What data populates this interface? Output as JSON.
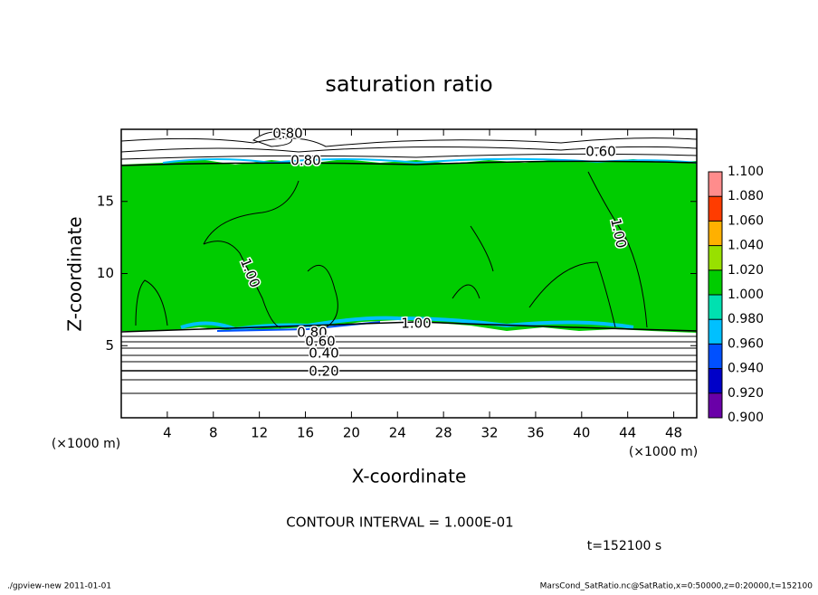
{
  "chart_data": {
    "type": "contour",
    "title": "saturation ratio",
    "xlabel": "X-coordinate",
    "ylabel": "Z-coordinate",
    "x_units": "(×1000 m)",
    "y_units": "(×1000 m)",
    "xlim": [
      0,
      50
    ],
    "xticks": [
      4,
      8,
      12,
      16,
      20,
      24,
      28,
      32,
      36,
      40,
      44,
      48
    ],
    "ylim": [
      0,
      20
    ],
    "yticks": [
      5,
      10,
      15
    ],
    "colorbar": {
      "levels": [
        {
          "value": 0.9,
          "label": "0.900"
        },
        {
          "value": 0.92,
          "label": "0.920"
        },
        {
          "value": 0.94,
          "label": "0.940"
        },
        {
          "value": 0.96,
          "label": "0.960"
        },
        {
          "value": 0.98,
          "label": "0.980"
        },
        {
          "value": 1.0,
          "label": "1.000"
        },
        {
          "value": 1.02,
          "label": "1.020"
        },
        {
          "value": 1.04,
          "label": "1.040"
        },
        {
          "value": 1.06,
          "label": "1.060"
        },
        {
          "value": 1.08,
          "label": "1.080"
        },
        {
          "value": 1.1,
          "label": "1.100"
        }
      ],
      "colors": [
        "#6a00a8",
        "#0000c8",
        "#0050ff",
        "#00c0ff",
        "#00e0b0",
        "#00cc00",
        "#98e000",
        "#ffb000",
        "#ff3c00",
        "#ff8c8c"
      ]
    },
    "contour_labels": [
      "0.80",
      "0.80",
      "0.60",
      "1.00",
      "1.00",
      "1.00",
      "0.80",
      "0.60",
      "0.40",
      "0.20"
    ],
    "contour_interval": "CONTOUR INTERVAL = 1.000E-01",
    "time": "t=152100 s",
    "footer_left": "./gpview-new  2011-01-01",
    "footer_right": "MarsCond_SatRatio.nc@SatRatio,x=0:50000,z=0:20000,t=152100"
  }
}
